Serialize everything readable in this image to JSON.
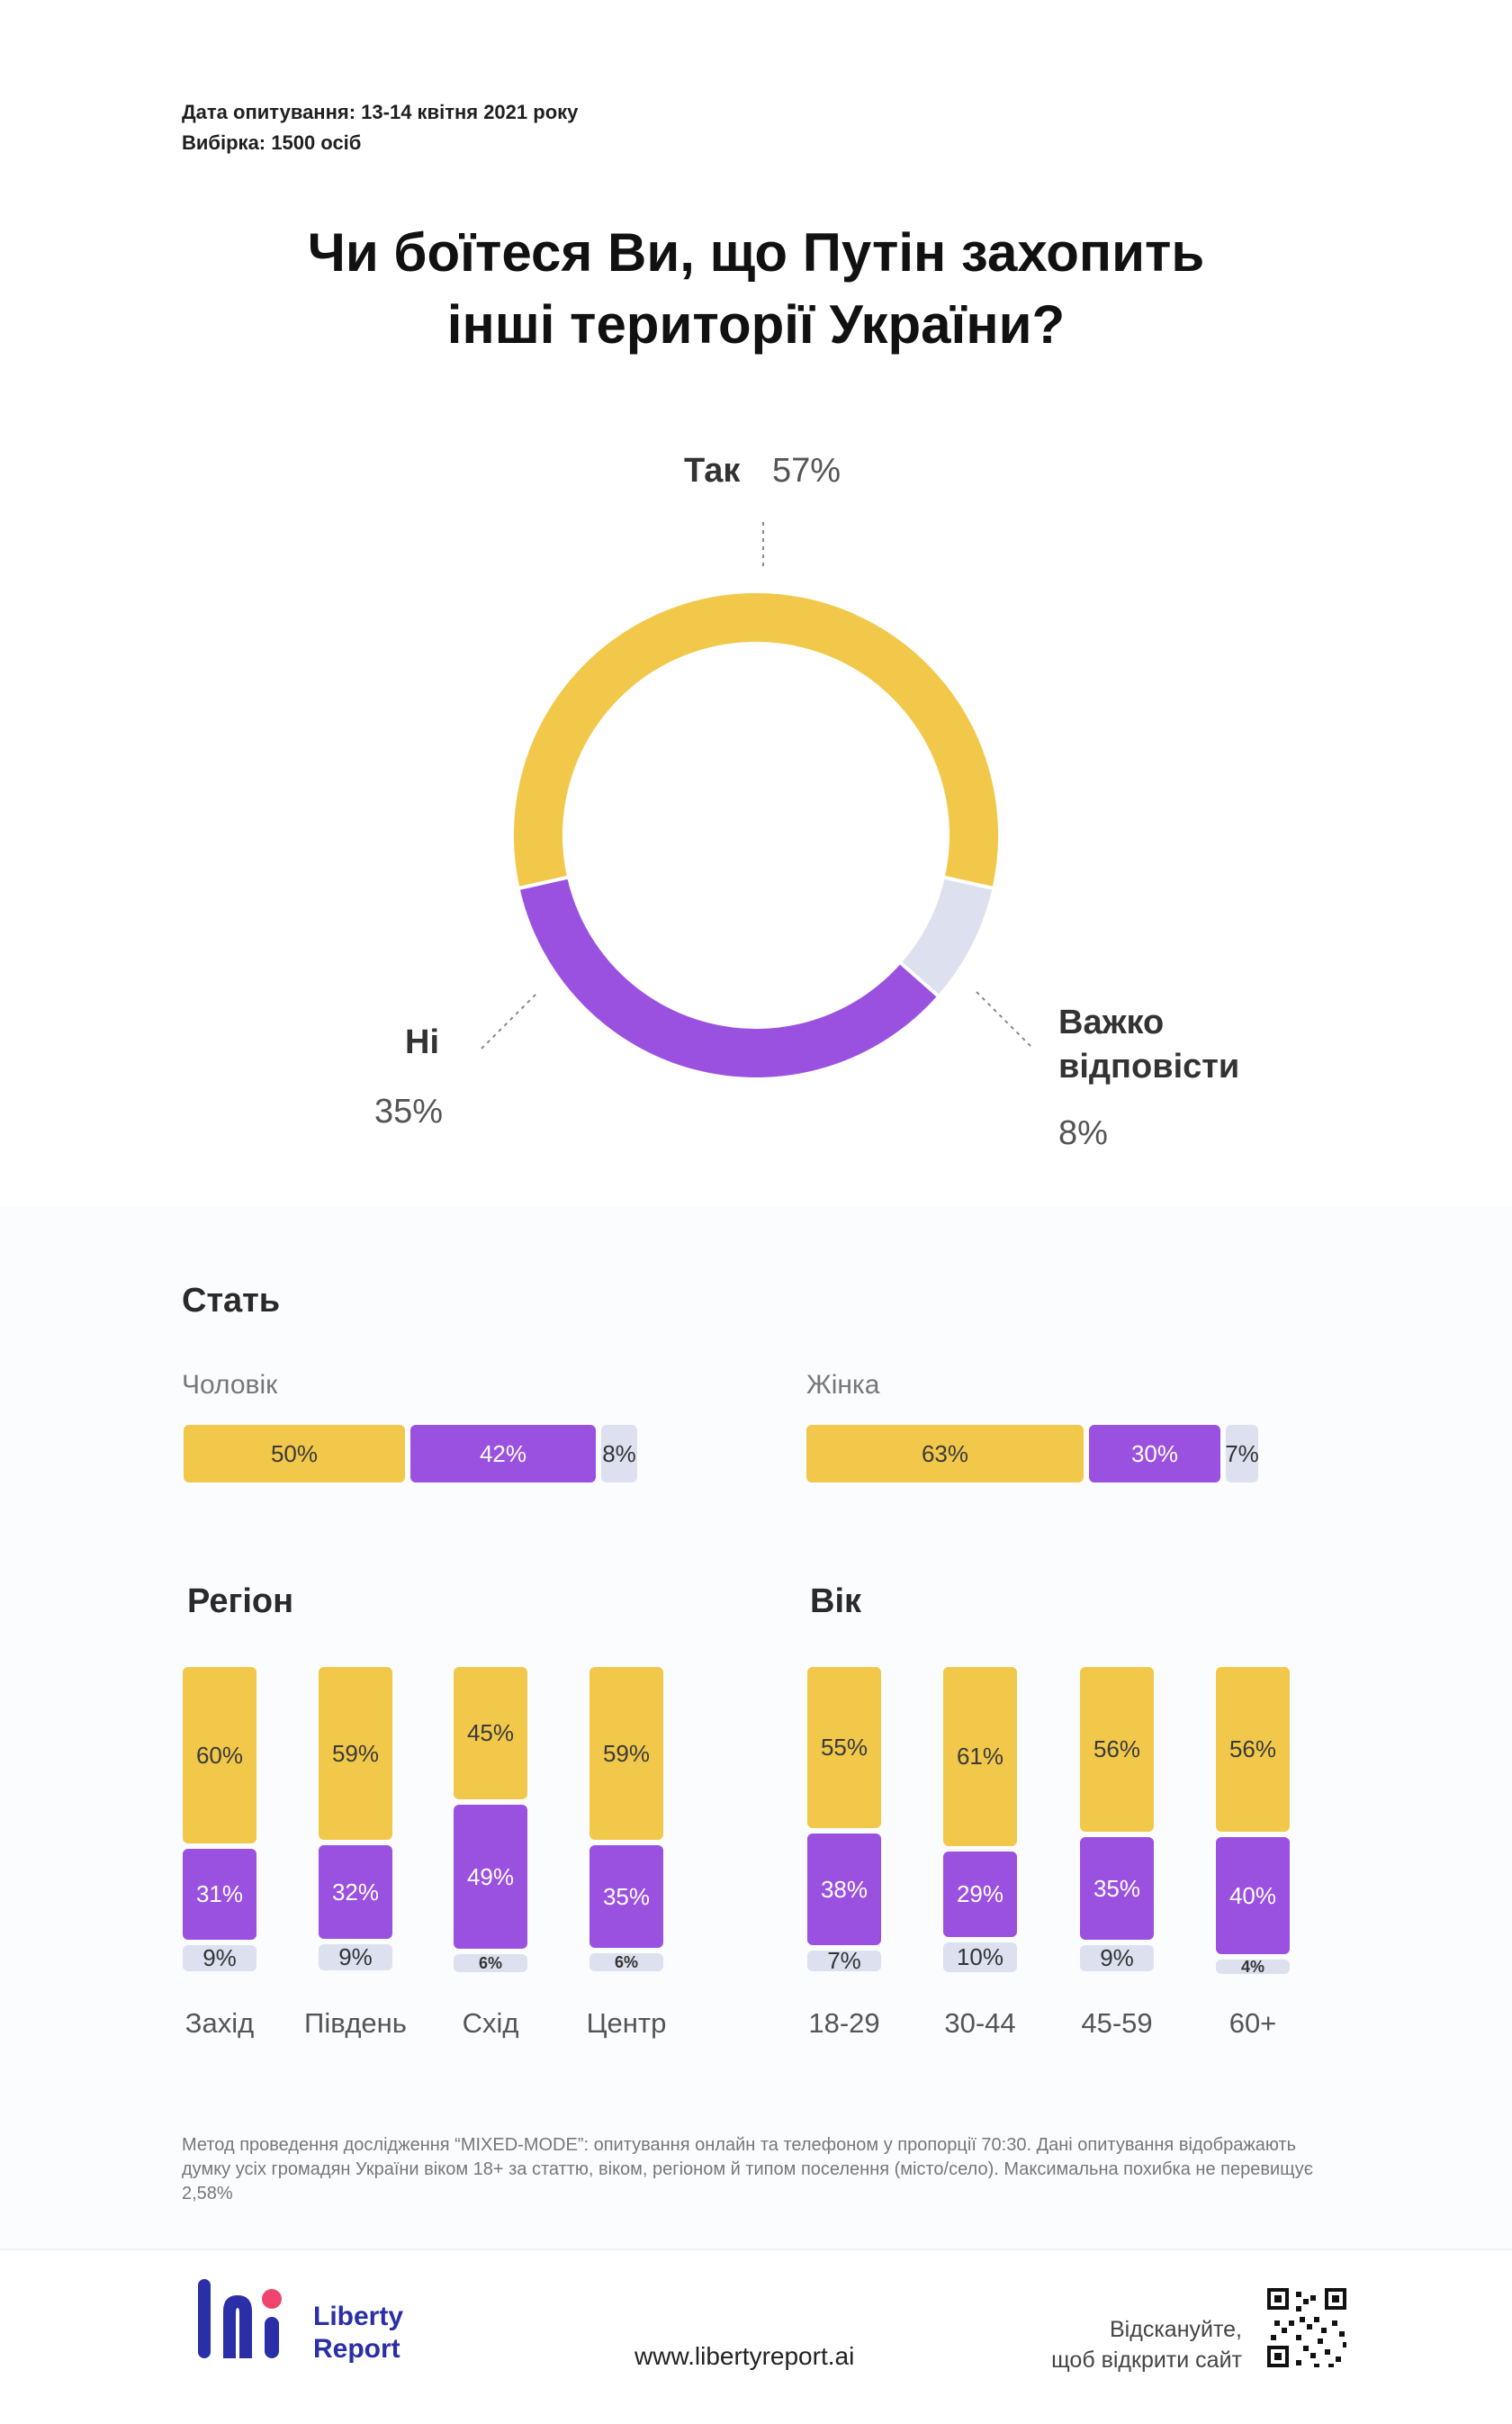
{
  "meta": {
    "date_line": "Дата опитування: 13-14 квітня 2021 року",
    "sample_line": "Вибірка: 1500 осіб"
  },
  "title_line1": "Чи боїтеся Ви, що Путін захопить",
  "title_line2": "інші території України?",
  "colors": {
    "yes": "#f2c84b",
    "no": "#9b51e0",
    "hard": "#dde0ef"
  },
  "chart_data": [
    {
      "type": "pie",
      "categories": [
        "Так",
        "Важко відповісти",
        "Ні"
      ],
      "values": [
        57,
        8,
        35
      ],
      "labels": {
        "yes": {
          "name": "Так",
          "value": "57%"
        },
        "no": {
          "name": "Ні",
          "value": "35%"
        },
        "hard": {
          "name_line1": "Важко",
          "name_line2": "відповісти",
          "value": "8%"
        }
      }
    },
    {
      "type": "bar",
      "title": "Стать",
      "categories": [
        "Чоловік",
        "Жінка"
      ],
      "series": [
        {
          "name": "Так",
          "values": [
            50,
            63
          ]
        },
        {
          "name": "Ні",
          "values": [
            42,
            30
          ]
        },
        {
          "name": "Важко відповісти",
          "values": [
            8,
            7
          ]
        }
      ]
    },
    {
      "type": "bar",
      "title": "Регіон",
      "categories": [
        "Захід",
        "Південь",
        "Схід",
        "Центр"
      ],
      "series": [
        {
          "name": "Так",
          "values": [
            60,
            59,
            45,
            59
          ]
        },
        {
          "name": "Ні",
          "values": [
            31,
            32,
            49,
            35
          ]
        },
        {
          "name": "Важко відповісти",
          "values": [
            9,
            9,
            6,
            6
          ]
        }
      ]
    },
    {
      "type": "bar",
      "title": "Вік",
      "categories": [
        "18-29",
        "30-44",
        "45-59",
        "60+"
      ],
      "series": [
        {
          "name": "Так",
          "values": [
            55,
            61,
            56,
            56
          ]
        },
        {
          "name": "Ні",
          "values": [
            38,
            29,
            35,
            40
          ]
        },
        {
          "name": "Важко відповісти",
          "values": [
            7,
            10,
            9,
            4
          ]
        }
      ]
    }
  ],
  "gender": {
    "title": "Стать",
    "men": {
      "label": "Чоловік",
      "yes": "50%",
      "no": "42%",
      "hard": "8%"
    },
    "women": {
      "label": "Жінка",
      "yes": "63%",
      "no": "30%",
      "hard": "7%"
    }
  },
  "region_title": "Регіон",
  "age_title": "Вік",
  "footnote": "Метод проведення дослідження “MIXED-MODE”: опитування онлайн та телефоном у пропорції 70:30. Дані опитування відображають думку усіх громадян України віком 18+ за статтю, віком, регіоном й типом поселення (місто/село). Максимальна похибка не перевищує 2,58%",
  "footer": {
    "logo_line1": "Liberty",
    "logo_line2": "Report",
    "site": "www.libertyreport.ai",
    "scan_line1": "Відскануйте,",
    "scan_line2": "щоб відкрити сайт"
  }
}
